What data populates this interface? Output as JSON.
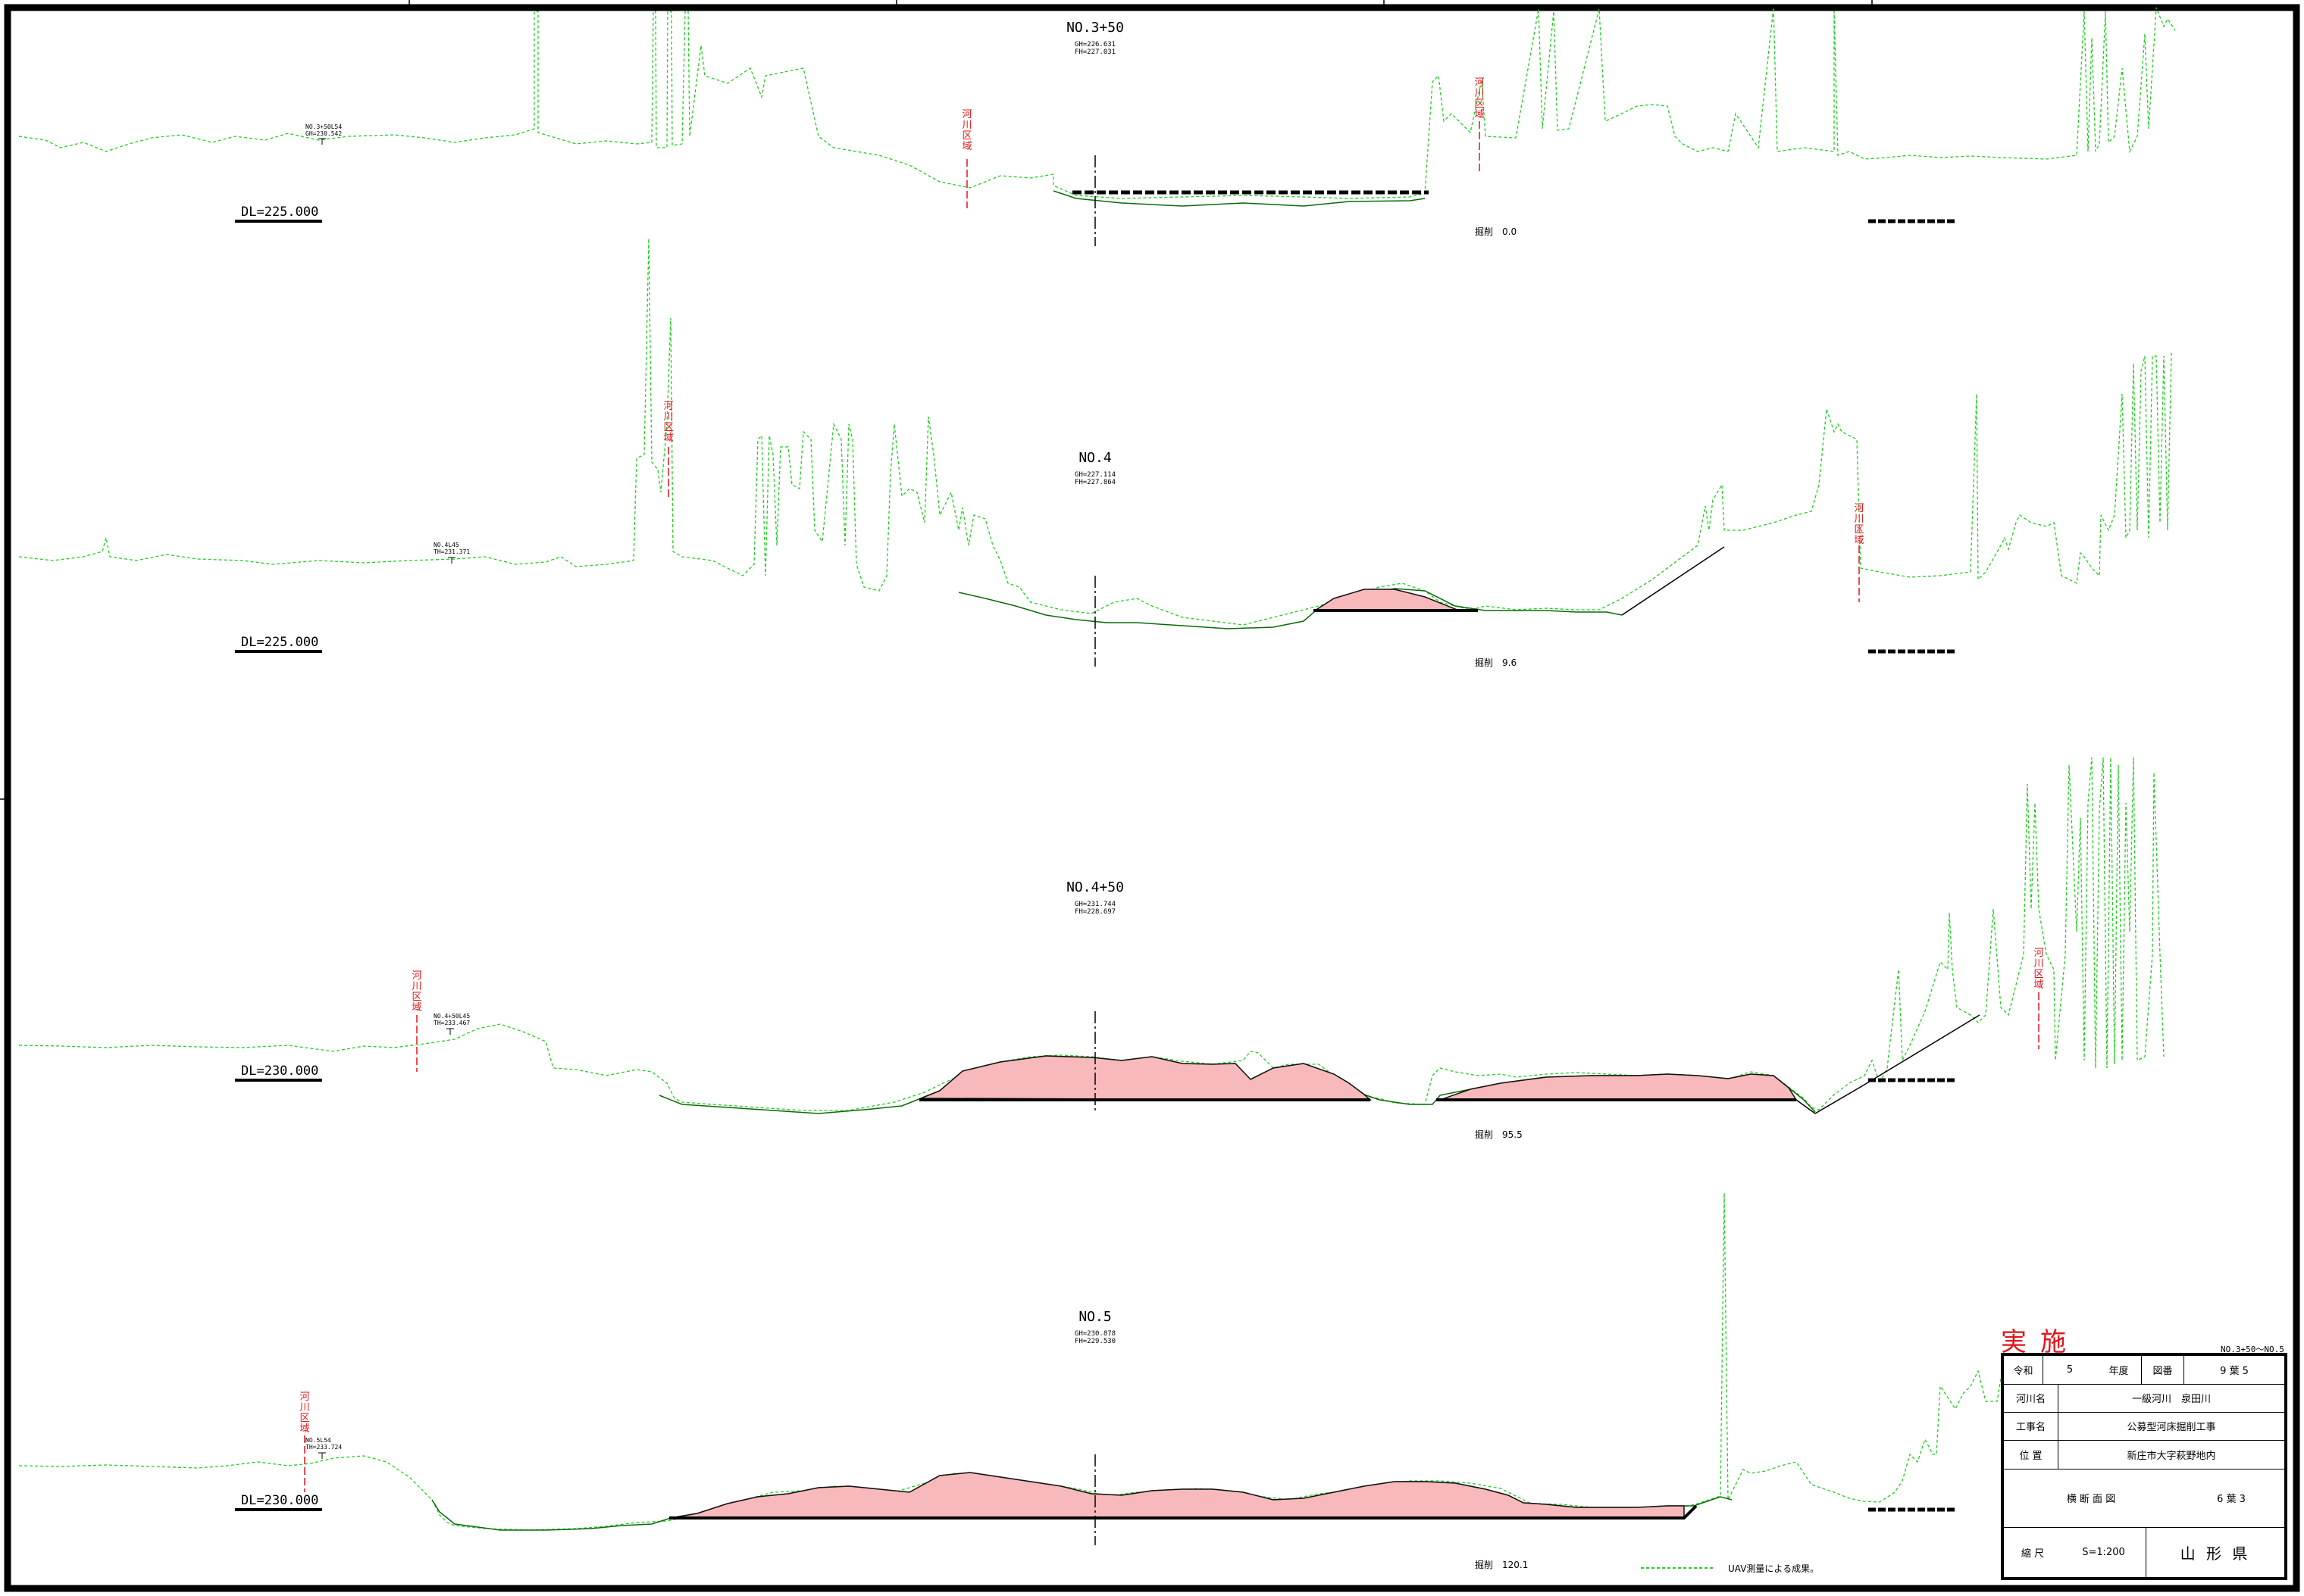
{
  "sections": [
    {
      "title": "NO.3+50",
      "gh": "GH=226.631",
      "fh": "FH=227.031",
      "dl": "DL=225.000",
      "amount": "掘削　0.0",
      "benchmark": [
        "NO.3+50L54",
        "GH=230.542"
      ]
    },
    {
      "title": "NO.4",
      "gh": "GH=227.114",
      "fh": "FH=227.864",
      "dl": "DL=225.000",
      "amount": "掘削　9.6",
      "benchmark": [
        "NO.4L45",
        "TH=231.371"
      ]
    },
    {
      "title": "NO.4+50",
      "gh": "GH=231.744",
      "fh": "FH=228.697",
      "dl": "DL=230.000",
      "amount": "掘削　95.5",
      "benchmark": [
        "NO.4+50L45",
        "TH=233.467"
      ]
    },
    {
      "title": "NO.5",
      "gh": "GH=230.878",
      "fh": "FH=229.530",
      "dl": "DL=230.000",
      "amount": "掘削　120.1",
      "benchmark": [
        "NO.5L54",
        "TH=233.724"
      ]
    }
  ],
  "river_area_label": "河川区域",
  "legend": {
    "text": "UAV測量による成果。",
    "line_color": "#22cc22"
  },
  "stamp": "実施",
  "sheet_range": "NO.3+50～NO.5",
  "title_block": {
    "year_label": "令和",
    "year_value": "5",
    "year_suffix": "年度",
    "drawing_no_label": "図番",
    "drawing_no_value": "9 葉 5",
    "river_label": "河川名",
    "river_value": "一級河川　泉田川",
    "work_label": "工事名",
    "work_value": "公募型河床掘削工事",
    "location_label": "位 置",
    "location_value": "新庄市大字萩野地内",
    "drawing_title": "横 断 面 図",
    "sheet_value": "6 葉 3",
    "scale_label": "縮 尺",
    "scale_value": "S=1:200",
    "issuer": "山 形 県"
  },
  "colors": {
    "ground_survey": "#22cc22",
    "design_line": "#000000",
    "excavation_fill": "#f8b9bd",
    "river_area": "#e1141a"
  }
}
